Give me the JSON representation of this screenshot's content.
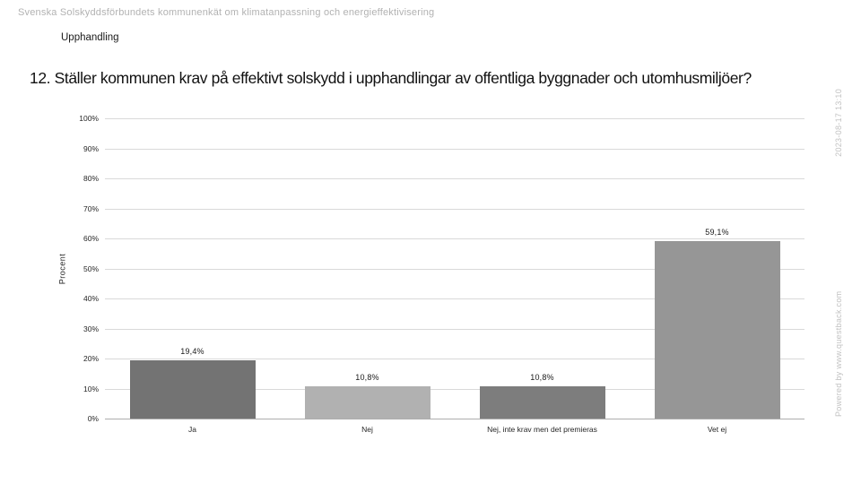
{
  "header": {
    "survey_title": "Svenska Solskyddsförbundets kommunenkät om klimatanpassning och energieffektivisering",
    "section": "Upphandling"
  },
  "chart_data": {
    "type": "bar",
    "title": "12. Ställer kommunen krav på effektivt solskydd i upphandlingar av offentliga byggnader och utomhusmiljöer?",
    "categories": [
      "Ja",
      "Nej",
      "Nej, inte krav men det premieras",
      "Vet ej"
    ],
    "values": [
      19.4,
      10.8,
      10.8,
      59.1
    ],
    "value_labels": [
      "19,4%",
      "10,8%",
      "10,8%",
      "59,1%"
    ],
    "bar_colors": [
      "#737373",
      "#b1b1b1",
      "#7d7d7d",
      "#969696"
    ],
    "ylabel": "Procent",
    "xlabel": "",
    "ylim": [
      0,
      100
    ],
    "ytick_step": 10,
    "ytick_suffix": "%",
    "grid": true,
    "legend": "none",
    "gridline_color": "#d9d9d9",
    "axis_line_color": "#adadad"
  },
  "watermark": {
    "powered_by": "Powered by www.questback.com",
    "timestamp": "2023-08-17 13:10"
  }
}
